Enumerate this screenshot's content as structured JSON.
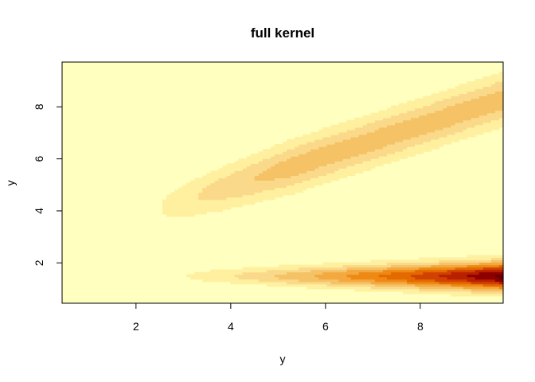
{
  "chart_data": {
    "type": "heatmap",
    "title": "full kernel",
    "xlabel": "y",
    "ylabel": "y",
    "xlim": [
      0.44,
      9.75
    ],
    "ylim": [
      0.45,
      9.72
    ],
    "x_ticks": [
      2,
      4,
      6,
      8
    ],
    "y_ticks": [
      2,
      4,
      6,
      8
    ],
    "x_tick_labels": [
      "2",
      "4",
      "6",
      "8"
    ],
    "y_tick_labels": [
      "2",
      "4",
      "6",
      "8"
    ],
    "grid": false,
    "legend": "none",
    "color_scale": "heat.colors (reversed)",
    "palette": [
      "#FFFFC0",
      "#FFF0A0",
      "#FADA8A",
      "#F5C266",
      "#F4A840",
      "#EE8A14",
      "#E46A00",
      "#D14200",
      "#B82000",
      "#8E0000",
      "#650000"
    ],
    "kernel_components": [
      {
        "name": "ridge",
        "description": "diagonal band from (2.5,4) rising to (9.7,8.3)",
        "peak_level": 3
      },
      {
        "name": "bottom-band",
        "description": "horizontal band near y=1.5, intensity growing with x",
        "peak_level": 10
      }
    ]
  }
}
